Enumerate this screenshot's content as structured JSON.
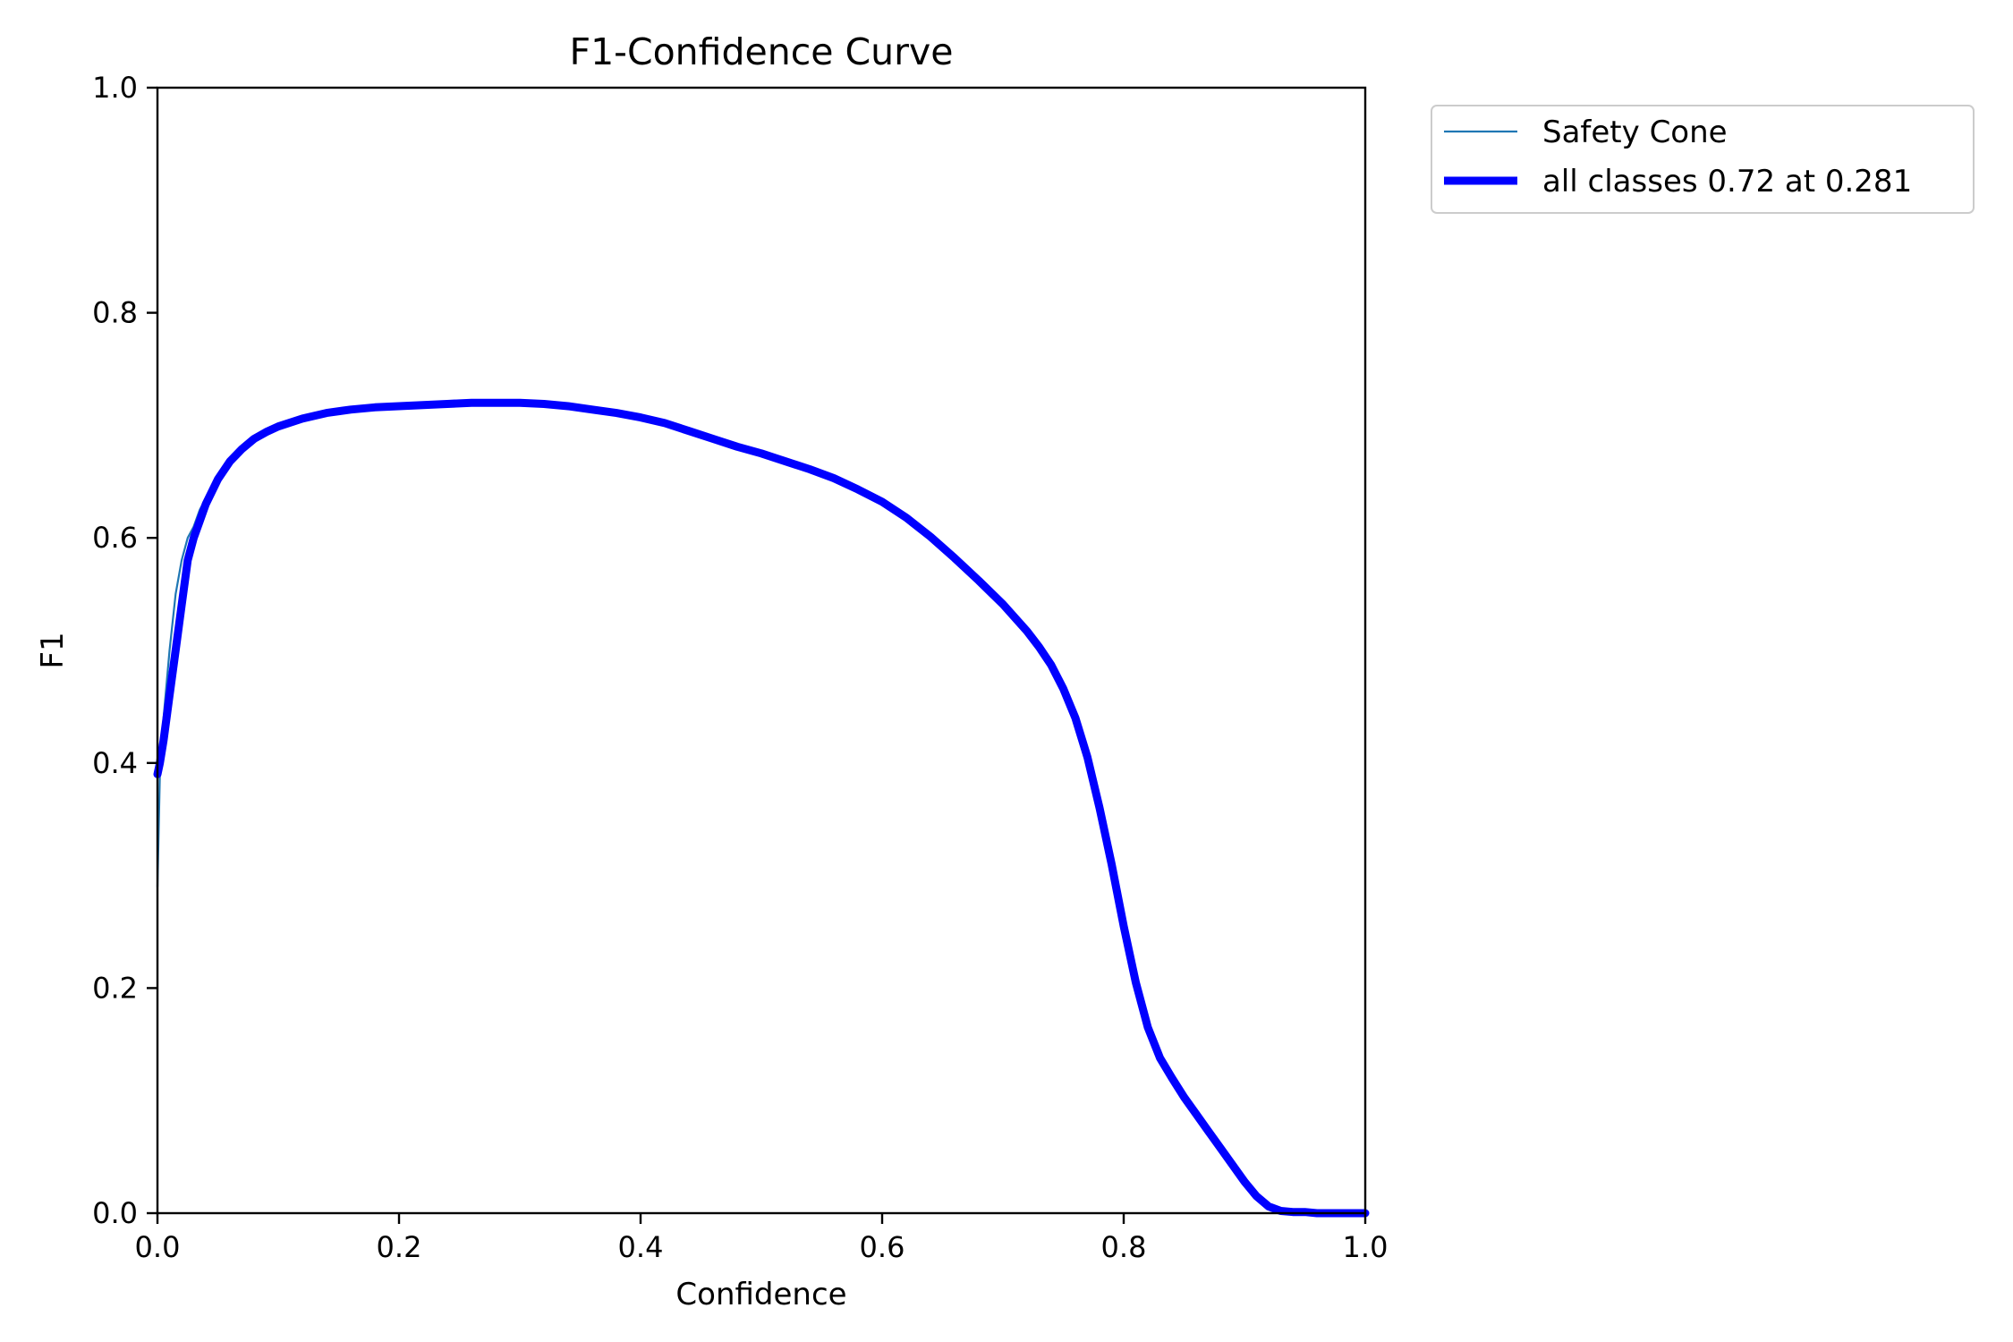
{
  "chart_data": {
    "type": "line",
    "title": "F1-Confidence Curve",
    "xlabel": "Confidence",
    "ylabel": "F1",
    "xlim": [
      0.0,
      1.0
    ],
    "ylim": [
      0.0,
      1.0
    ],
    "x_ticks": [
      "0.0",
      "0.2",
      "0.4",
      "0.6",
      "0.8",
      "1.0"
    ],
    "y_ticks": [
      "0.0",
      "0.2",
      "0.4",
      "0.6",
      "0.8",
      "1.0"
    ],
    "grid": false,
    "legend_position": "outside-top-right",
    "series": [
      {
        "name": "Safety Cone",
        "color": "#1f77b4",
        "linewidth": "thin",
        "x": [
          0.0,
          0.002,
          0.005,
          0.01,
          0.015,
          0.02,
          0.025,
          0.03,
          0.035,
          0.04,
          0.05,
          0.06,
          0.07,
          0.08,
          0.09,
          0.1,
          0.12,
          0.14,
          0.16,
          0.18,
          0.2,
          0.22,
          0.24,
          0.26,
          0.28,
          0.3,
          0.32,
          0.34,
          0.36,
          0.38,
          0.4,
          0.42,
          0.44,
          0.46,
          0.48,
          0.5,
          0.52,
          0.54,
          0.56,
          0.58,
          0.6,
          0.62,
          0.64,
          0.66,
          0.68,
          0.7,
          0.72,
          0.73,
          0.74,
          0.75,
          0.76,
          0.77,
          0.78,
          0.79,
          0.8,
          0.81,
          0.82,
          0.83,
          0.84,
          0.85,
          0.86,
          0.87,
          0.88,
          0.89,
          0.9,
          0.91,
          0.92,
          0.93,
          0.94,
          0.95,
          0.96,
          0.97,
          0.98,
          0.99,
          1.0
        ],
        "y": [
          0.29,
          0.39,
          0.44,
          0.5,
          0.55,
          0.58,
          0.6,
          0.61,
          0.625,
          0.635,
          0.655,
          0.67,
          0.68,
          0.688,
          0.694,
          0.699,
          0.706,
          0.711,
          0.714,
          0.716,
          0.717,
          0.718,
          0.719,
          0.72,
          0.72,
          0.72,
          0.719,
          0.717,
          0.714,
          0.711,
          0.707,
          0.702,
          0.695,
          0.688,
          0.681,
          0.675,
          0.668,
          0.661,
          0.653,
          0.643,
          0.632,
          0.618,
          0.601,
          0.582,
          0.562,
          0.541,
          0.517,
          0.503,
          0.487,
          0.466,
          0.44,
          0.405,
          0.36,
          0.31,
          0.255,
          0.205,
          0.165,
          0.138,
          0.12,
          0.103,
          0.088,
          0.073,
          0.058,
          0.043,
          0.028,
          0.015,
          0.006,
          0.002,
          0.001,
          0.001,
          0.0,
          0.0,
          0.0,
          0.0,
          0.0
        ]
      },
      {
        "name": "all classes 0.72 at 0.281",
        "color": "#0000ff",
        "linewidth": "thick",
        "x": [
          0.0,
          0.002,
          0.005,
          0.01,
          0.015,
          0.02,
          0.025,
          0.03,
          0.035,
          0.04,
          0.05,
          0.06,
          0.07,
          0.08,
          0.09,
          0.1,
          0.12,
          0.14,
          0.16,
          0.18,
          0.2,
          0.22,
          0.24,
          0.26,
          0.28,
          0.3,
          0.32,
          0.34,
          0.36,
          0.38,
          0.4,
          0.42,
          0.44,
          0.46,
          0.48,
          0.5,
          0.52,
          0.54,
          0.56,
          0.58,
          0.6,
          0.62,
          0.64,
          0.66,
          0.68,
          0.7,
          0.72,
          0.73,
          0.74,
          0.75,
          0.76,
          0.77,
          0.78,
          0.79,
          0.8,
          0.81,
          0.82,
          0.83,
          0.84,
          0.85,
          0.86,
          0.87,
          0.88,
          0.89,
          0.9,
          0.91,
          0.92,
          0.93,
          0.94,
          0.95,
          0.96,
          0.97,
          0.98,
          0.99,
          1.0
        ],
        "y": [
          0.39,
          0.4,
          0.42,
          0.46,
          0.5,
          0.54,
          0.58,
          0.6,
          0.615,
          0.63,
          0.652,
          0.668,
          0.679,
          0.688,
          0.694,
          0.699,
          0.706,
          0.711,
          0.714,
          0.716,
          0.717,
          0.718,
          0.719,
          0.72,
          0.72,
          0.72,
          0.719,
          0.717,
          0.714,
          0.711,
          0.707,
          0.702,
          0.695,
          0.688,
          0.681,
          0.675,
          0.668,
          0.661,
          0.653,
          0.643,
          0.632,
          0.618,
          0.601,
          0.582,
          0.562,
          0.541,
          0.517,
          0.503,
          0.487,
          0.466,
          0.44,
          0.405,
          0.36,
          0.31,
          0.255,
          0.205,
          0.165,
          0.138,
          0.12,
          0.103,
          0.088,
          0.073,
          0.058,
          0.043,
          0.028,
          0.015,
          0.006,
          0.002,
          0.001,
          0.001,
          0.0,
          0.0,
          0.0,
          0.0,
          0.0
        ]
      }
    ]
  }
}
